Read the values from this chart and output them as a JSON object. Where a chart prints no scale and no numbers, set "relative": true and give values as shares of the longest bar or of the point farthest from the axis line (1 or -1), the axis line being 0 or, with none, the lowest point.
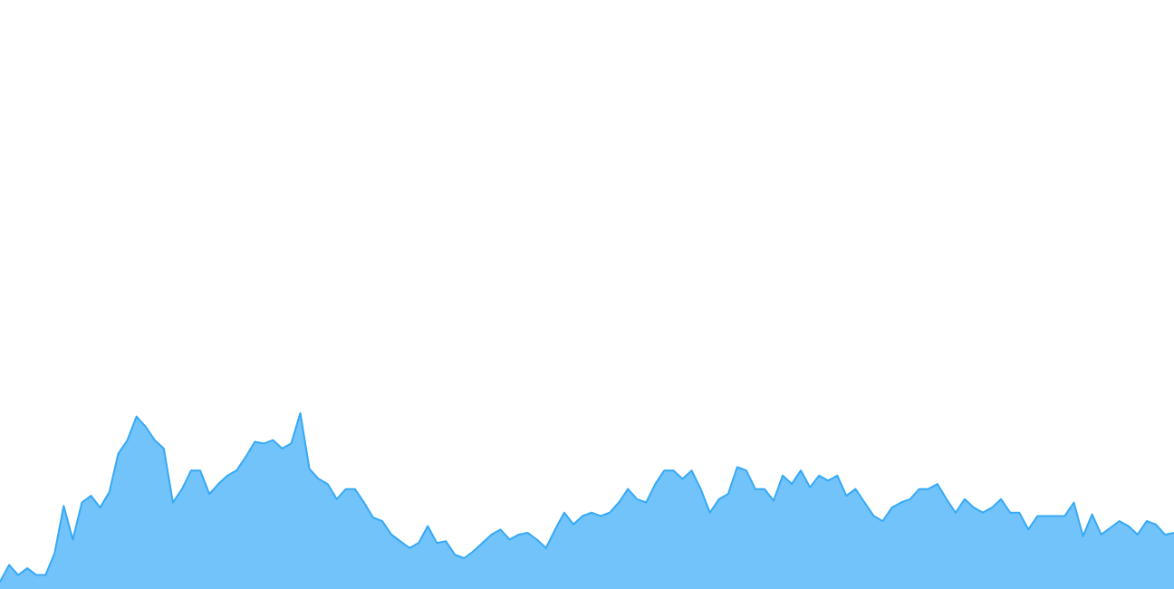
{
  "chart_data": {
    "type": "area",
    "relative": true,
    "legend": false,
    "marker": "none",
    "categories": [
      null,
      null,
      null,
      null,
      null,
      null,
      null,
      null,
      null,
      null,
      null,
      null,
      null,
      null,
      null,
      null,
      null,
      null,
      null,
      null,
      null,
      null,
      null,
      null,
      null,
      null,
      null,
      null,
      null,
      null,
      null,
      null,
      null,
      null,
      null,
      null,
      null,
      null,
      null,
      null,
      null,
      null,
      null,
      null,
      null,
      null,
      null,
      null,
      null,
      null,
      null,
      null,
      null,
      null,
      null,
      null,
      null,
      null,
      null,
      null,
      null,
      null,
      null,
      null,
      null,
      null,
      null,
      null,
      null,
      null,
      null,
      null,
      null,
      null,
      null,
      null,
      null,
      null,
      null,
      null,
      null,
      null,
      null,
      null,
      null,
      null,
      null,
      null,
      null,
      null,
      null,
      null,
      null,
      null,
      null,
      null,
      null,
      null,
      null,
      null,
      null,
      null,
      null,
      null,
      null,
      null,
      null,
      null,
      null,
      null,
      null,
      null,
      null,
      null,
      null,
      null,
      null,
      null,
      null,
      null,
      null,
      null,
      null,
      null,
      null,
      null,
      null,
      null,
      null,
      null
    ],
    "series": [
      {
        "color": "#36a9f7",
        "values": [
          0,
          0.1,
          0.04,
          0.08,
          0.04,
          0.04,
          0.17,
          0.45,
          0.25,
          0.47,
          0.51,
          0.44,
          0.53,
          0.76,
          0.84,
          0.98,
          0.92,
          0.84,
          0.79,
          0.47,
          0.55,
          0.66,
          0.66,
          0.52,
          0.58,
          0.63,
          0.66,
          0.74,
          0.83,
          0.82,
          0.84,
          0.79,
          0.82,
          1,
          0.67,
          0.61,
          0.58,
          0.49,
          0.55,
          0.55,
          0.47,
          0.38,
          0.36,
          0.28,
          0.24,
          0.2,
          0.23,
          0.33,
          0.23,
          0.24,
          0.16,
          0.14,
          0.18,
          0.23,
          0.28,
          0.31,
          0.25,
          0.28,
          0.29,
          0.25,
          0.2,
          0.31,
          0.41,
          0.34,
          0.39,
          0.41,
          0.39,
          0.41,
          0.47,
          0.55,
          0.49,
          0.47,
          0.58,
          0.66,
          0.66,
          0.61,
          0.66,
          0.55,
          0.41,
          0.49,
          0.52,
          0.68,
          0.66,
          0.55,
          0.55,
          0.48,
          0.63,
          0.58,
          0.66,
          0.56,
          0.63,
          0.6,
          0.63,
          0.51,
          0.55,
          0.47,
          0.39,
          0.36,
          0.44,
          0.47,
          0.49,
          0.55,
          0.55,
          0.58,
          0.49,
          0.41,
          0.49,
          0.44,
          0.41,
          0.44,
          0.49,
          0.41,
          0.41,
          0.31,
          0.39,
          0.39,
          0.39,
          0.39,
          0.47,
          0.27,
          0.4,
          0.28,
          0.32,
          0.36,
          0.33,
          0.28,
          0.36,
          0.34,
          0.28,
          0.29
        ]
      }
    ]
  }
}
